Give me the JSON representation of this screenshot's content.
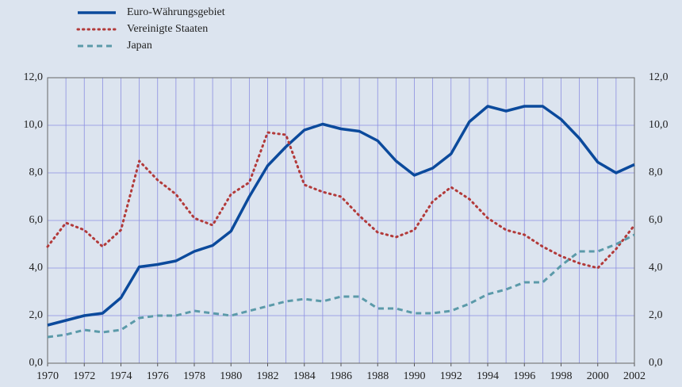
{
  "chart_data": {
    "type": "line",
    "x": [
      1970,
      1971,
      1972,
      1973,
      1974,
      1975,
      1976,
      1977,
      1978,
      1979,
      1980,
      1981,
      1982,
      1983,
      1984,
      1985,
      1986,
      1987,
      1988,
      1989,
      1990,
      1991,
      1992,
      1993,
      1994,
      1995,
      1996,
      1997,
      1998,
      1999,
      2000,
      2001,
      2002
    ],
    "series": [
      {
        "name": "Euro-Währungsgebiet",
        "color": "#0b4a9c",
        "style": "solid",
        "values": [
          1.6,
          1.8,
          2.0,
          2.1,
          2.75,
          4.05,
          4.15,
          4.3,
          4.7,
          4.95,
          5.55,
          7.0,
          8.3,
          9.1,
          9.8,
          10.05,
          9.85,
          9.75,
          9.35,
          8.5,
          7.9,
          8.2,
          8.8,
          10.15,
          10.8,
          10.6,
          10.8,
          10.8,
          10.25,
          9.45,
          8.45,
          8.0,
          8.35
        ]
      },
      {
        "name": "Vereinigte Staaten",
        "color": "#b23a3a",
        "style": "dotted",
        "values": [
          4.9,
          5.9,
          5.6,
          4.9,
          5.6,
          8.5,
          7.7,
          7.1,
          6.1,
          5.8,
          7.1,
          7.6,
          9.7,
          9.6,
          7.5,
          7.2,
          7.0,
          6.2,
          5.5,
          5.3,
          5.6,
          6.8,
          7.4,
          6.9,
          6.1,
          5.6,
          5.4,
          4.9,
          4.5,
          4.2,
          4.0,
          4.8,
          5.8
        ]
      },
      {
        "name": "Japan",
        "color": "#5b9aa9",
        "style": "dashed",
        "values": [
          1.1,
          1.2,
          1.4,
          1.3,
          1.4,
          1.9,
          2.0,
          2.0,
          2.2,
          2.1,
          2.0,
          2.2,
          2.4,
          2.6,
          2.7,
          2.6,
          2.8,
          2.8,
          2.3,
          2.3,
          2.1,
          2.1,
          2.2,
          2.5,
          2.9,
          3.1,
          3.4,
          3.4,
          4.1,
          4.7,
          4.7,
          5.0,
          5.4
        ]
      }
    ],
    "xlim": [
      1970,
      2002
    ],
    "xticks": [
      1970,
      1972,
      1974,
      1976,
      1978,
      1980,
      1982,
      1984,
      1986,
      1988,
      1990,
      1992,
      1994,
      1996,
      1998,
      2000,
      2002
    ],
    "ylim": [
      0,
      12
    ],
    "yticks": [
      {
        "value": 0,
        "label": "0,0"
      },
      {
        "value": 2,
        "label": "2,0"
      },
      {
        "value": 4,
        "label": "4,0"
      },
      {
        "value": 6,
        "label": "6,0"
      },
      {
        "value": 8,
        "label": "8,0"
      },
      {
        "value": 10,
        "label": "10,0"
      },
      {
        "value": 12,
        "label": "12,0"
      }
    ],
    "grid": true,
    "legend": "top-left"
  }
}
